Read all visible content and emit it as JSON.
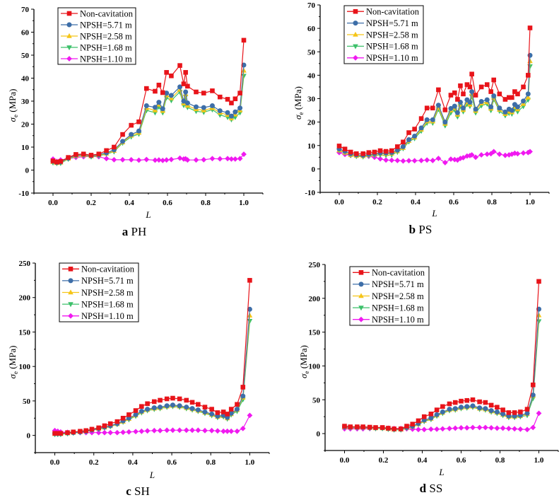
{
  "figure": {
    "legend_labels": [
      "Non-cavitation",
      "NPSH=5.71 m",
      "NPSH=2.58 m",
      "NPSH=1.68 m",
      "NPSH=1.10 m"
    ],
    "series_colors": [
      "#e8141a",
      "#3d6ea8",
      "#f5c518",
      "#3cc06a",
      "#f019f0"
    ],
    "series_markers": [
      "square",
      "circle",
      "triangle-up",
      "triangle-down",
      "diamond"
    ]
  },
  "chart_data": [
    {
      "type": "line",
      "panel_letter": "a",
      "title": "PH",
      "xlabel": "L",
      "ylabel": "σe (MPa)",
      "xlim": [
        -0.1,
        1.1
      ],
      "ylim": [
        -10,
        70
      ],
      "xticks": [
        0.0,
        0.2,
        0.4,
        0.6,
        0.8,
        1.0
      ],
      "xtick_labels": [
        "0.0",
        "0.2",
        "0.4",
        "0.6",
        "0.8",
        "1.0"
      ],
      "yticks": [
        -10,
        0,
        10,
        20,
        30,
        40,
        50,
        60,
        70
      ],
      "ytick_labels": [
        "-10",
        "0",
        "10",
        "20",
        "30",
        "40",
        "50",
        "60",
        "70"
      ],
      "legend": "top-left",
      "x": [
        0.0,
        0.02,
        0.04,
        0.08,
        0.12,
        0.16,
        0.2,
        0.24,
        0.28,
        0.32,
        0.365,
        0.41,
        0.45,
        0.49,
        0.535,
        0.555,
        0.575,
        0.595,
        0.62,
        0.665,
        0.685,
        0.695,
        0.705,
        0.75,
        0.79,
        0.835,
        0.875,
        0.915,
        0.935,
        0.955,
        0.98,
        1.0
      ],
      "series": [
        {
          "name": "Non-cavitation",
          "values": [
            4.0,
            3.5,
            3.8,
            5.5,
            6.8,
            7.0,
            6.5,
            7.0,
            8.5,
            10.0,
            15.5,
            19.5,
            21.0,
            35.5,
            34.3,
            37.0,
            33.7,
            42.5,
            41.0,
            45.5,
            37.5,
            42.5,
            36.5,
            34.0,
            33.5,
            34.5,
            31.8,
            30.8,
            29.2,
            31.0,
            33.5,
            56.5
          ]
        },
        {
          "name": "NPSH=5.71 m",
          "values": [
            3.8,
            3.3,
            3.5,
            5.2,
            6.5,
            6.8,
            6.2,
            6.7,
            7.5,
            8.8,
            12.5,
            15.5,
            17.0,
            28.0,
            27.3,
            29.5,
            26.7,
            33.5,
            32.5,
            36.2,
            30.0,
            34.0,
            29.2,
            27.5,
            27.2,
            28.0,
            25.8,
            25.0,
            23.5,
            25.3,
            27.0,
            45.7
          ]
        },
        {
          "name": "NPSH=2.58 m",
          "values": [
            3.5,
            3.1,
            3.3,
            5.0,
            6.2,
            6.5,
            6.0,
            6.5,
            7.2,
            8.4,
            12.1,
            15.0,
            16.3,
            27.0,
            26.0,
            28.5,
            25.8,
            32.5,
            31.3,
            35.0,
            29.0,
            33.0,
            28.0,
            26.5,
            26.0,
            27.0,
            25.0,
            24.0,
            22.5,
            24.2,
            26.0,
            43.3
          ]
        },
        {
          "name": "NPSH=1.68 m",
          "values": [
            3.2,
            2.9,
            3.0,
            4.8,
            6.0,
            6.3,
            5.8,
            6.2,
            7.0,
            8.0,
            11.8,
            14.5,
            15.7,
            26.0,
            25.0,
            27.5,
            25.0,
            31.5,
            30.3,
            34.0,
            28.2,
            32.0,
            27.3,
            25.6,
            25.2,
            26.3,
            24.0,
            23.0,
            22.0,
            23.0,
            25.0,
            41.0
          ]
        },
        {
          "name": "NPSH=1.10 m",
          "values": [
            4.8,
            3.8,
            4.4,
            5.0,
            5.5,
            5.8,
            6.0,
            5.8,
            5.0,
            4.5,
            4.5,
            4.5,
            4.3,
            4.6,
            4.3,
            4.4,
            4.2,
            4.4,
            4.6,
            5.2,
            4.8,
            4.9,
            4.4,
            4.4,
            4.5,
            5.0,
            4.9,
            5.0,
            4.8,
            4.8,
            5.0,
            6.9
          ]
        }
      ]
    },
    {
      "type": "line",
      "panel_letter": "b",
      "title": "PS",
      "xlabel": "L",
      "ylabel": "σe (MPa)",
      "xlim": [
        -0.1,
        1.1
      ],
      "ylim": [
        -10,
        70
      ],
      "xticks": [
        0.0,
        0.2,
        0.4,
        0.6,
        0.8,
        1.0
      ],
      "xtick_labels": [
        "0.0",
        "0.2",
        "0.4",
        "0.6",
        "0.8",
        "1.0"
      ],
      "yticks": [
        -10,
        0,
        10,
        20,
        30,
        40,
        50,
        60,
        70
      ],
      "ytick_labels": [
        "-10",
        "0",
        "10",
        "20",
        "30",
        "40",
        "50",
        "60",
        "70"
      ],
      "legend": "top-left",
      "x": [
        0.0,
        0.03,
        0.06,
        0.09,
        0.125,
        0.155,
        0.185,
        0.215,
        0.245,
        0.275,
        0.305,
        0.335,
        0.365,
        0.395,
        0.43,
        0.46,
        0.49,
        0.52,
        0.555,
        0.585,
        0.605,
        0.62,
        0.635,
        0.65,
        0.67,
        0.685,
        0.695,
        0.715,
        0.745,
        0.775,
        0.795,
        0.81,
        0.84,
        0.87,
        0.89,
        0.905,
        0.92,
        0.935,
        0.965,
        0.99,
        1.0
      ],
      "series": [
        {
          "name": "Non-cavitation",
          "values": [
            9.8,
            8.5,
            7.2,
            6.5,
            6.5,
            7.0,
            7.2,
            7.8,
            7.5,
            7.8,
            9.5,
            11.5,
            15.5,
            17.0,
            21.5,
            26.0,
            26.0,
            33.8,
            25.2,
            31.5,
            32.5,
            29.7,
            35.5,
            32.0,
            36.0,
            35.0,
            40.5,
            31.5,
            35.0,
            36.0,
            33.0,
            38.0,
            32.0,
            29.7,
            30.5,
            30.5,
            33.0,
            32.0,
            35.0,
            40.0,
            60.2
          ]
        },
        {
          "name": "NPSH=5.71 m",
          "values": [
            8.5,
            7.5,
            6.5,
            6.0,
            5.8,
            6.2,
            6.5,
            6.8,
            6.8,
            7.0,
            8.0,
            9.5,
            12.5,
            14.0,
            17.5,
            21.0,
            21.0,
            27.2,
            20.0,
            25.8,
            26.8,
            24.0,
            28.5,
            26.0,
            29.5,
            28.5,
            33.0,
            25.5,
            28.8,
            29.5,
            26.5,
            31.2,
            26.0,
            24.3,
            25.5,
            25.0,
            27.5,
            26.5,
            29.0,
            32.0,
            48.5
          ]
        },
        {
          "name": "NPSH=2.58 m",
          "values": [
            8.0,
            7.0,
            6.0,
            5.6,
            5.5,
            5.9,
            6.2,
            6.5,
            6.4,
            6.6,
            7.6,
            9.0,
            12.0,
            13.5,
            16.8,
            20.3,
            20.3,
            26.2,
            19.3,
            25.0,
            26.0,
            23.2,
            27.5,
            25.2,
            28.5,
            27.5,
            32.0,
            24.8,
            28.0,
            28.5,
            25.8,
            30.3,
            25.3,
            23.5,
            24.5,
            24.2,
            26.5,
            25.5,
            27.8,
            30.5,
            46.0
          ]
        },
        {
          "name": "NPSH=1.68 m",
          "values": [
            7.8,
            6.8,
            5.8,
            5.4,
            5.2,
            5.6,
            5.8,
            6.0,
            5.8,
            6.0,
            7.2,
            8.7,
            11.6,
            13.0,
            16.2,
            19.6,
            19.6,
            25.5,
            18.5,
            24.0,
            25.2,
            22.3,
            26.8,
            24.5,
            27.6,
            26.8,
            31.0,
            24.0,
            27.0,
            27.8,
            25.0,
            29.7,
            24.7,
            22.8,
            23.8,
            23.5,
            25.5,
            24.5,
            26.7,
            29.5,
            43.8
          ]
        },
        {
          "name": "NPSH=1.10 m",
          "values": [
            7.0,
            6.2,
            5.8,
            5.5,
            5.5,
            5.4,
            5.0,
            4.3,
            3.8,
            3.7,
            3.6,
            3.4,
            3.5,
            3.5,
            3.6,
            3.8,
            3.6,
            4.5,
            2.7,
            4.2,
            4.0,
            3.8,
            4.5,
            4.8,
            5.5,
            5.7,
            6.0,
            5.0,
            6.0,
            6.3,
            6.5,
            7.4,
            6.3,
            5.8,
            6.0,
            6.3,
            6.7,
            6.5,
            6.8,
            7.0,
            7.4
          ]
        }
      ]
    },
    {
      "type": "line",
      "panel_letter": "c",
      "title": "SH",
      "xlabel": "L",
      "ylabel": "σe (MPa)",
      "xlim": [
        -0.1,
        1.1
      ],
      "ylim": [
        -25,
        250
      ],
      "xticks": [
        0.0,
        0.2,
        0.4,
        0.6,
        0.8,
        1.0
      ],
      "xtick_labels": [
        "0.0",
        "0.2",
        "0.4",
        "0.6",
        "0.8",
        "1.0"
      ],
      "yticks": [
        0,
        50,
        100,
        150,
        200,
        250
      ],
      "ytick_labels": [
        "0",
        "50",
        "100",
        "150",
        "200",
        "250"
      ],
      "legend": "top-left",
      "x": [
        0.0,
        0.015,
        0.03,
        0.065,
        0.095,
        0.13,
        0.16,
        0.19,
        0.225,
        0.255,
        0.285,
        0.32,
        0.35,
        0.38,
        0.415,
        0.445,
        0.475,
        0.51,
        0.54,
        0.575,
        0.605,
        0.64,
        0.675,
        0.705,
        0.735,
        0.77,
        0.805,
        0.835,
        0.865,
        0.885,
        0.905,
        0.935,
        0.965,
        1.0
      ],
      "series": [
        {
          "name": "Non-cavitation",
          "values": [
            3,
            3,
            3,
            4,
            5,
            6,
            7,
            9,
            11,
            14,
            17,
            20,
            25,
            30,
            36,
            42,
            46,
            49,
            51,
            53,
            54,
            53,
            51,
            48,
            45,
            41,
            38,
            33,
            34,
            31,
            38,
            45,
            70,
            225
          ]
        },
        {
          "name": "NPSH=5.71 m",
          "values": [
            2.5,
            2.5,
            2.5,
            3.5,
            4,
            5,
            6,
            8,
            10,
            12,
            14,
            17,
            21,
            25,
            30,
            35,
            38,
            40,
            41,
            43,
            44,
            43,
            41,
            39,
            37,
            34,
            31,
            28,
            29,
            26,
            32,
            38,
            57,
            183
          ]
        },
        {
          "name": "NPSH=2.58 m",
          "values": [
            2,
            2,
            2,
            3,
            4,
            5,
            6,
            8,
            9.5,
            11.5,
            13.5,
            16.5,
            20,
            24,
            29,
            34,
            37,
            39,
            40,
            42,
            43,
            42,
            40,
            38,
            36,
            33,
            30,
            27,
            28,
            25,
            31,
            37,
            55,
            174
          ]
        },
        {
          "name": "NPSH=1.68 m",
          "values": [
            1.5,
            1.5,
            1.5,
            2.5,
            3.5,
            4.5,
            5.5,
            7.5,
            9,
            11,
            13,
            16,
            19.5,
            23,
            28,
            33,
            36,
            38,
            39,
            41,
            42,
            41,
            39,
            37,
            35,
            32,
            29,
            26,
            27,
            24,
            30,
            35,
            52,
            166
          ]
        },
        {
          "name": "NPSH=1.10 m",
          "values": [
            7,
            6,
            5,
            4.5,
            4,
            4,
            4,
            4,
            4,
            4,
            4,
            4,
            4.5,
            5,
            5.5,
            6,
            6.5,
            7,
            7,
            7.5,
            7.5,
            7.5,
            7.5,
            7.5,
            7.5,
            7,
            7,
            6.5,
            6,
            6,
            6,
            6,
            10,
            29
          ]
        }
      ]
    },
    {
      "type": "line",
      "panel_letter": "d",
      "title": "SS",
      "xlabel": "L",
      "ylabel": "σe (MPa)",
      "xlim": [
        -0.1,
        1.1
      ],
      "ylim": [
        -25,
        250
      ],
      "xticks": [
        0.0,
        0.2,
        0.4,
        0.6,
        0.8,
        1.0
      ],
      "xtick_labels": [
        "0.0",
        "0.2",
        "0.4",
        "0.6",
        "0.8",
        "1.0"
      ],
      "yticks": [
        0,
        50,
        100,
        150,
        200,
        250
      ],
      "ytick_labels": [
        "0",
        "50",
        "100",
        "150",
        "200",
        "250"
      ],
      "legend": "top-left",
      "x": [
        0.0,
        0.03,
        0.065,
        0.095,
        0.13,
        0.16,
        0.195,
        0.225,
        0.255,
        0.29,
        0.32,
        0.35,
        0.38,
        0.41,
        0.445,
        0.475,
        0.505,
        0.54,
        0.57,
        0.6,
        0.63,
        0.66,
        0.695,
        0.725,
        0.755,
        0.785,
        0.815,
        0.845,
        0.875,
        0.905,
        0.94,
        0.97,
        1.0
      ],
      "series": [
        {
          "name": "Non-cavitation",
          "values": [
            11,
            10,
            10,
            10,
            9.5,
            9,
            9,
            8,
            7,
            7,
            11,
            14,
            19,
            25,
            29,
            35,
            40,
            44,
            46,
            48,
            49,
            50,
            47,
            46,
            42,
            39,
            35,
            31,
            31,
            32,
            36,
            72,
            225
          ]
        },
        {
          "name": "NPSH=5.71 m",
          "values": [
            10,
            9.5,
            9.5,
            9.5,
            9,
            8.5,
            8.5,
            7.5,
            6.5,
            6.5,
            9,
            11,
            15,
            20,
            23,
            28,
            32,
            36,
            37,
            39,
            40,
            41,
            38,
            37,
            34,
            32,
            29,
            26,
            26,
            27,
            30,
            57,
            184
          ]
        },
        {
          "name": "NPSH=2.58 m",
          "values": [
            9.5,
            9,
            9,
            9,
            8.5,
            8,
            8,
            7,
            6,
            6,
            8.5,
            10.5,
            14,
            19,
            22,
            27,
            31,
            35,
            36,
            38,
            39,
            40,
            37,
            36,
            33,
            31,
            28,
            25,
            25,
            26,
            29,
            56,
            175
          ]
        },
        {
          "name": "NPSH=1.68 m",
          "values": [
            9,
            8.5,
            8.5,
            8.5,
            8,
            7.5,
            7.5,
            6.5,
            5.5,
            5.5,
            8,
            10,
            13.5,
            18,
            21,
            26,
            30,
            34,
            35,
            37,
            38,
            39,
            36,
            35,
            32,
            30,
            27,
            24,
            24,
            25,
            27,
            52,
            166
          ]
        },
        {
          "name": "NPSH=1.10 m",
          "values": [
            7,
            7,
            7,
            7,
            7.5,
            8,
            8.5,
            8,
            7.5,
            7.5,
            7,
            6.5,
            6,
            6,
            6.5,
            6.5,
            7,
            7.5,
            8,
            8.5,
            8.5,
            9,
            9,
            9,
            8.5,
            8,
            8,
            7.5,
            7,
            6.5,
            6,
            9,
            30
          ]
        }
      ]
    }
  ]
}
